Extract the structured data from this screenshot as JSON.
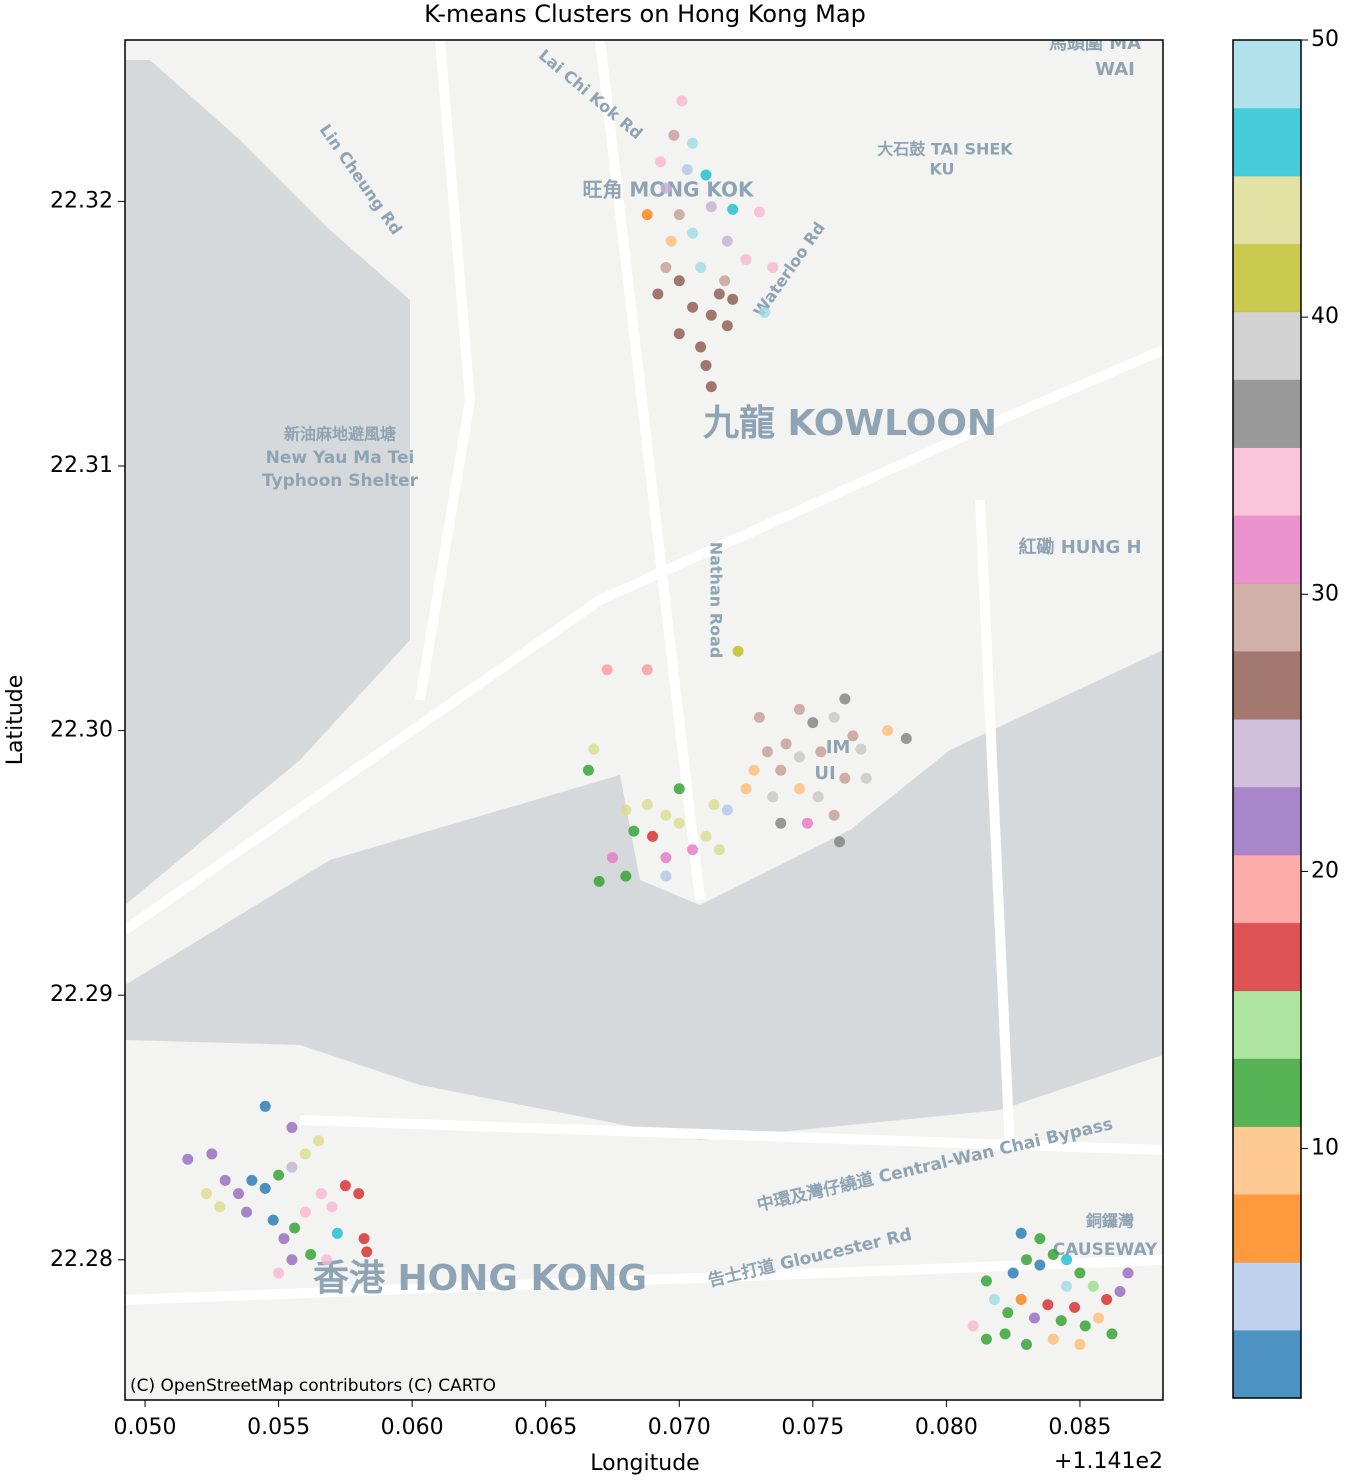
{
  "chart_data": {
    "type": "scatter",
    "title": "K-means Clusters on Hong Kong Map",
    "x_label": "Longitude",
    "y_label": "Latitude",
    "x_offset_label": "+1.141e2",
    "xlim": [
      0.04925,
      0.08811
    ],
    "ylim": [
      22.2747,
      22.3261
    ],
    "xticks": [
      {
        "value": 0.05,
        "label": "0.050"
      },
      0.055,
      {
        "value": 0.06,
        "label": "0.060"
      },
      0.065,
      {
        "value": 0.07,
        "label": "0.070"
      },
      0.075,
      {
        "value": 0.08,
        "label": "0.080"
      },
      0.085
    ],
    "yticks": [
      22.28,
      22.29,
      {
        "value": 22.3,
        "label": "22.30"
      },
      22.31,
      22.32
    ],
    "x": [
      0.0701,
      0.0698,
      0.0705,
      0.0695,
      0.071,
      0.0688,
      0.07,
      0.0712,
      0.072,
      0.073,
      0.0697,
      0.0705,
      0.0718,
      0.0725,
      0.0695,
      0.07,
      0.0708,
      0.0715,
      0.072,
      0.0705,
      0.0712,
      0.07,
      0.0718,
      0.0708,
      0.071,
      0.0712,
      0.0717,
      0.0732,
      0.0735,
      0.0692,
      0.0703,
      0.0693,
      0.0673,
      0.0688,
      0.0722,
      0.073,
      0.0745,
      0.075,
      0.0758,
      0.0762,
      0.0765,
      0.074,
      0.0733,
      0.0728,
      0.0738,
      0.0745,
      0.0753,
      0.0768,
      0.0778,
      0.0785,
      0.0725,
      0.0735,
      0.0745,
      0.0752,
      0.0762,
      0.077,
      0.0758,
      0.0748,
      0.0738,
      0.076,
      0.068,
      0.0688,
      0.0695,
      0.069,
      0.07,
      0.071,
      0.0705,
      0.0715,
      0.0695,
      0.0683,
      0.07,
      0.0713,
      0.0675,
      0.0668,
      0.0666,
      0.067,
      0.068,
      0.0718,
      0.0695,
      0.0516,
      0.0525,
      0.053,
      0.0535,
      0.054,
      0.0545,
      0.055,
      0.0555,
      0.056,
      0.0565,
      0.0528,
      0.0538,
      0.0548,
      0.0552,
      0.0556,
      0.056,
      0.0566,
      0.057,
      0.0575,
      0.058,
      0.0555,
      0.055,
      0.0562,
      0.0572,
      0.0568,
      0.0582,
      0.0583,
      0.0545,
      0.0555,
      0.0523,
      0.0815,
      0.0825,
      0.083,
      0.0835,
      0.084,
      0.0845,
      0.085,
      0.0855,
      0.086,
      0.0865,
      0.0818,
      0.0823,
      0.0828,
      0.0833,
      0.0838,
      0.0843,
      0.0848,
      0.0852,
      0.0857,
      0.0862,
      0.0815,
      0.0822,
      0.083,
      0.084,
      0.085,
      0.0845,
      0.0835,
      0.0828,
      0.0868,
      0.081
    ],
    "y": [
      22.3238,
      22.3225,
      22.3222,
      22.3205,
      22.321,
      22.3195,
      22.3195,
      22.3198,
      22.3197,
      22.3196,
      22.3185,
      22.3188,
      22.3185,
      22.3178,
      22.3175,
      22.317,
      22.3175,
      22.3165,
      22.3163,
      22.316,
      22.3157,
      22.315,
      22.3153,
      22.3145,
      22.3138,
      22.313,
      22.317,
      22.3158,
      22.3175,
      22.3165,
      22.3212,
      22.3215,
      22.3023,
      22.3023,
      22.303,
      22.3005,
      22.3008,
      22.3003,
      22.3005,
      22.3012,
      22.2998,
      22.2995,
      22.2992,
      22.2985,
      22.2985,
      22.299,
      22.2992,
      22.2993,
      22.3,
      22.2997,
      22.2978,
      22.2975,
      22.2978,
      22.2975,
      22.2982,
      22.2982,
      22.2968,
      22.2965,
      22.2965,
      22.2958,
      22.297,
      22.2972,
      22.2968,
      22.296,
      22.2965,
      22.296,
      22.2955,
      22.2955,
      22.2952,
      22.2962,
      22.2978,
      22.2972,
      22.2952,
      22.2993,
      22.2985,
      22.2943,
      22.2945,
      22.297,
      22.2945,
      22.2838,
      22.284,
      22.283,
      22.2825,
      22.283,
      22.2827,
      22.2832,
      22.2835,
      22.284,
      22.2845,
      22.282,
      22.2818,
      22.2815,
      22.2808,
      22.2812,
      22.2818,
      22.2825,
      22.282,
      22.2828,
      22.2825,
      22.28,
      22.2795,
      22.2802,
      22.281,
      22.28,
      22.2808,
      22.2803,
      22.2858,
      22.285,
      22.2825,
      22.2792,
      22.2795,
      22.28,
      22.2798,
      22.2802,
      22.28,
      22.2795,
      22.279,
      22.2785,
      22.2788,
      22.2785,
      22.278,
      22.2785,
      22.2778,
      22.2783,
      22.2777,
      22.2782,
      22.2775,
      22.2778,
      22.2772,
      22.277,
      22.2772,
      22.2768,
      22.277,
      22.2768,
      22.279,
      22.2808,
      22.281,
      22.2795,
      22.2775
    ],
    "c": [
      34,
      29,
      49,
      25,
      47,
      7,
      29,
      25,
      47,
      34,
      9,
      49,
      25,
      34,
      29,
      27,
      49,
      27,
      27,
      27,
      27,
      27,
      27,
      27,
      27,
      27,
      29,
      49,
      34,
      27,
      5,
      34,
      19,
      19,
      41,
      29,
      29,
      37,
      39,
      37,
      29,
      29,
      29,
      9,
      29,
      39,
      29,
      39,
      9,
      37,
      9,
      39,
      9,
      39,
      29,
      39,
      29,
      31,
      37,
      37,
      45,
      43,
      43,
      17,
      43,
      43,
      31,
      43,
      31,
      13,
      13,
      43,
      31,
      43,
      13,
      13,
      13,
      5,
      5,
      23,
      23,
      23,
      23,
      1,
      1,
      11,
      25,
      45,
      45,
      45,
      23,
      1,
      23,
      11,
      34,
      35,
      34,
      17,
      17,
      23,
      34,
      11,
      47,
      35,
      17,
      17,
      1,
      23,
      43,
      11,
      1,
      11,
      1,
      11,
      47,
      11,
      15,
      17,
      21,
      49,
      11,
      7,
      23,
      17,
      11,
      17,
      11,
      9,
      11,
      11,
      13,
      11,
      9,
      9,
      49,
      11,
      1,
      23,
      34
    ],
    "colorbar": {
      "clim": [
        1,
        50
      ],
      "ticks": [
        10,
        20,
        30,
        40,
        50
      ],
      "colors": [
        "#1f77b4",
        "#aec7e8",
        "#ff7f0e",
        "#ffbb78",
        "#2ca02c",
        "#98df8a",
        "#d62728",
        "#ff9896",
        "#9467bd",
        "#c5b0d5",
        "#8c564b",
        "#c49c94",
        "#e377c2",
        "#f7b6d2",
        "#7f7f7f",
        "#c7c7c7",
        "#bcbd22",
        "#dbdb8d",
        "#17becf",
        "#9edae5"
      ]
    },
    "alpha": 0.8,
    "map_labels": [
      "九龍 KOWLOON",
      "香港 HONG KONG",
      "旺角 MONG KOK",
      "新油麻地避風塘",
      "New Yau Ma Tei",
      "Typhoon Shelter",
      "大石鼓 TAI SHEK",
      "KU",
      "紅磡 HUNG H",
      "Nathan Road",
      "Waterloo Rd",
      "Lin Cheung Rd",
      "Lai Chi Kok Rd",
      "中環及灣仔繞道 Central-Wan Chai Bypass",
      "告士打道 Gloucester Rd",
      "CAUSEWAY",
      "銅鑼灣",
      "IM",
      "UI",
      "馬頭圍 MA",
      "WAI"
    ],
    "attribution": "(C) OpenStreetMap contributors (C) CARTO"
  }
}
